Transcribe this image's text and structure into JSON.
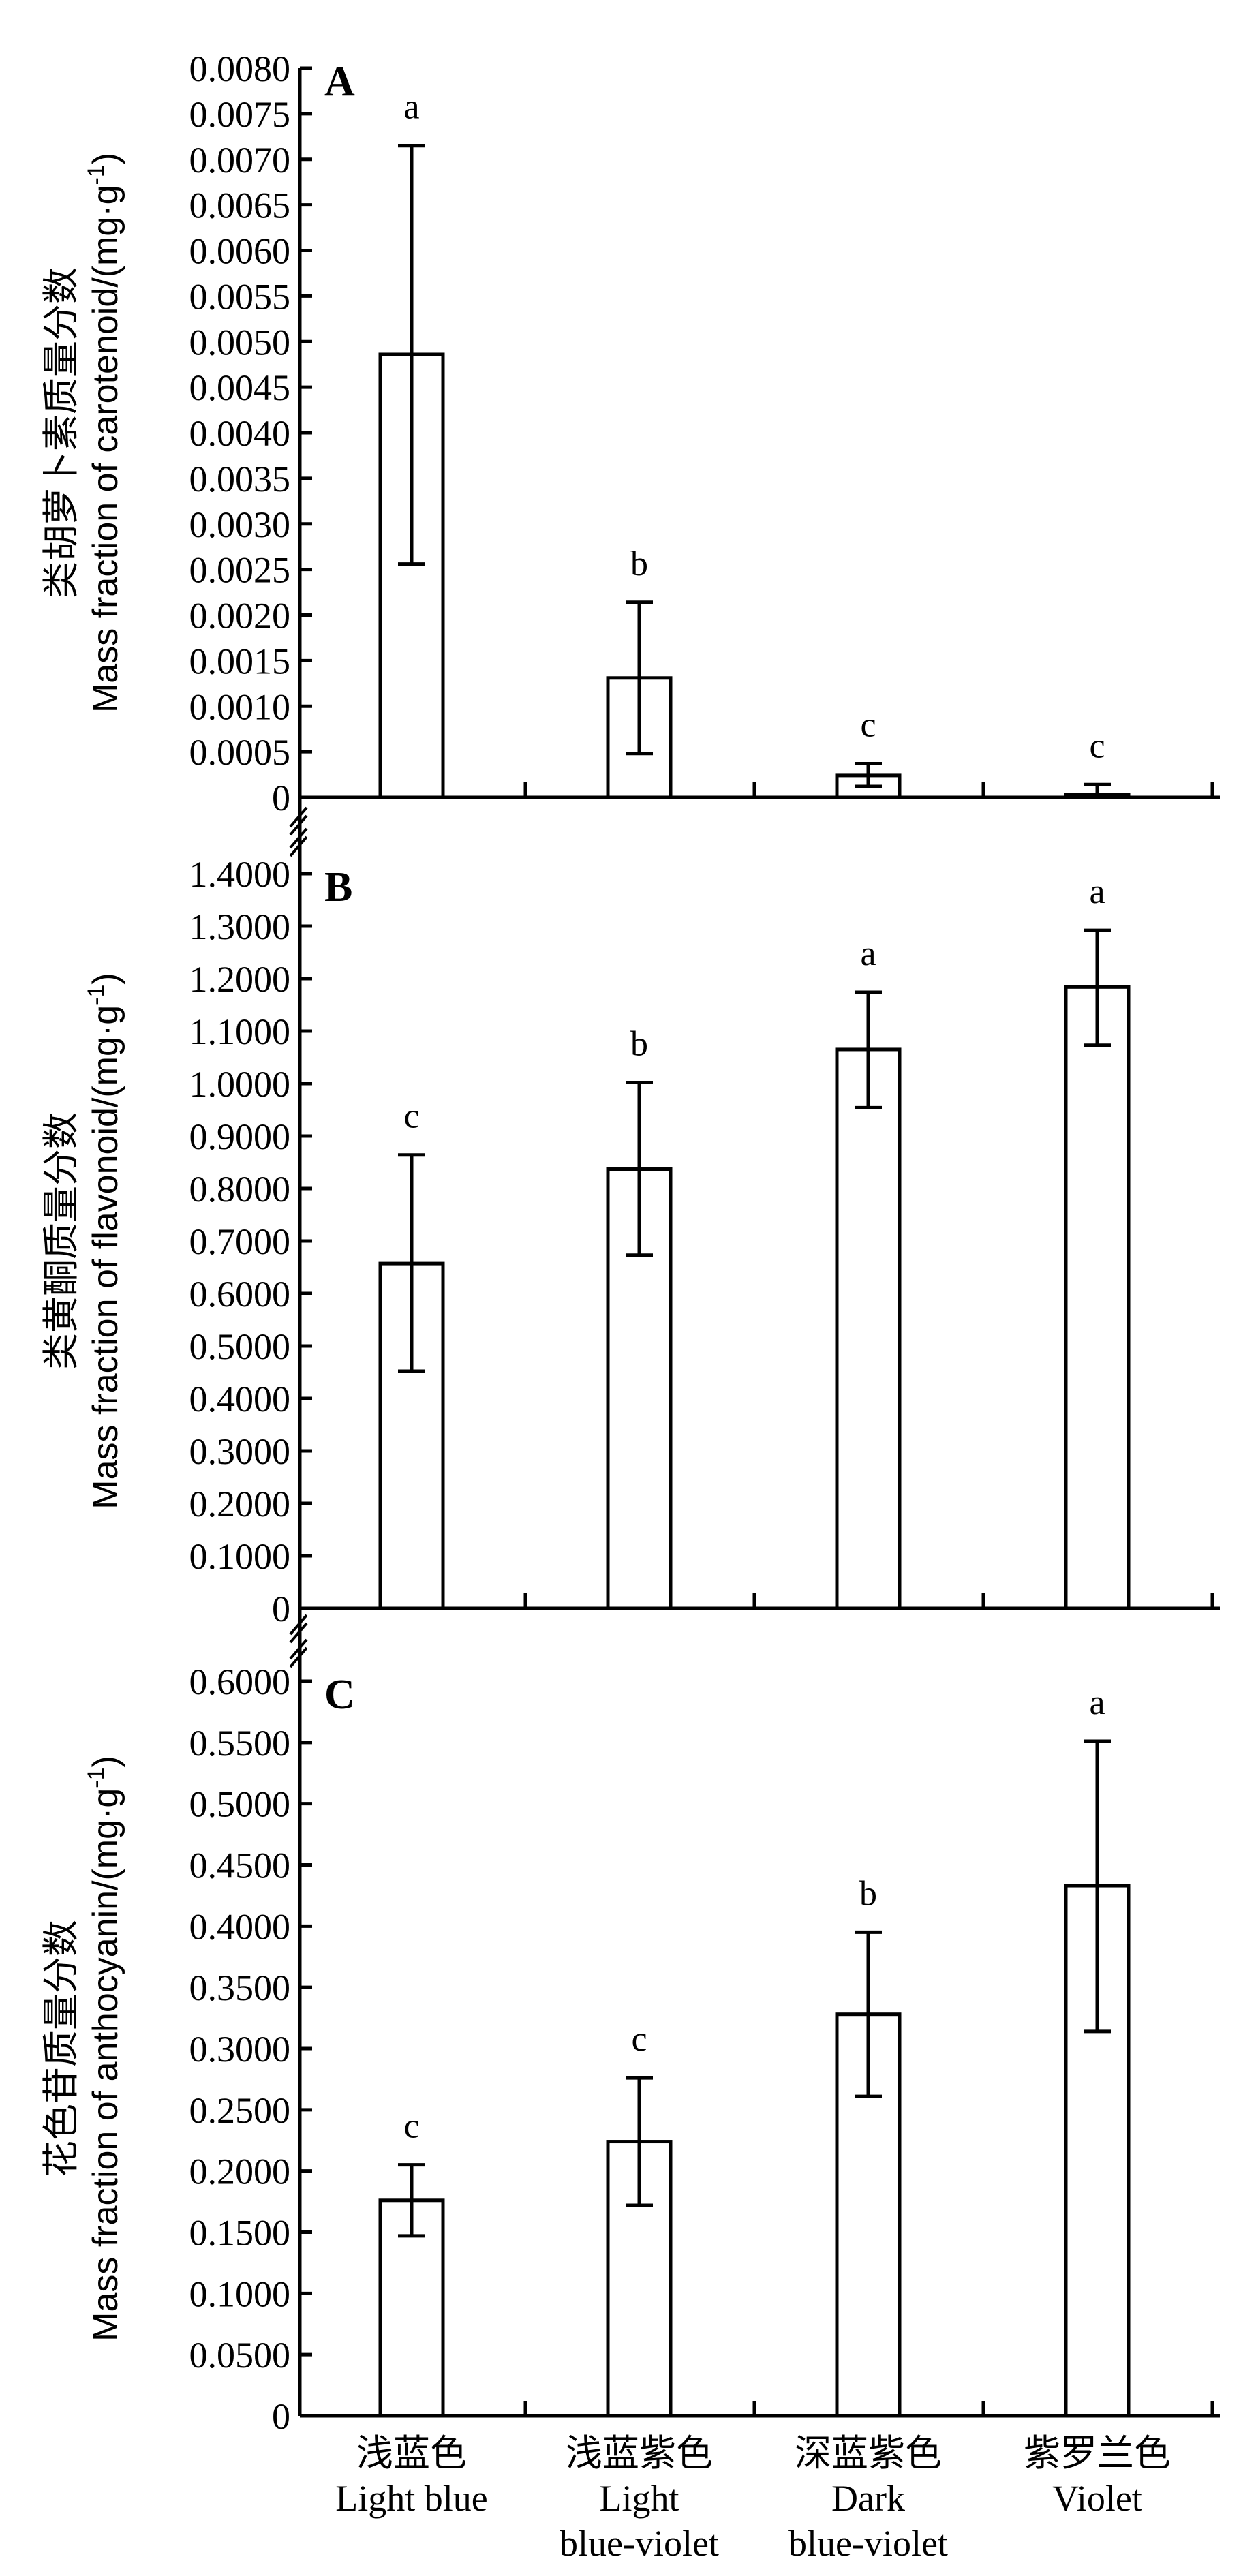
{
  "chart_data": {
    "type": "bar",
    "categories": [
      {
        "zh": "浅蓝色",
        "en": [
          "Light blue"
        ]
      },
      {
        "zh": "浅蓝紫色",
        "en": [
          "Light",
          "blue-violet"
        ]
      },
      {
        "zh": "深蓝紫色",
        "en": [
          "Dark",
          "blue-violet"
        ]
      },
      {
        "zh": "紫罗兰色",
        "en": [
          "Violet"
        ]
      }
    ],
    "panels": [
      {
        "label": "A",
        "ylabel_zh": "类胡萝卜素质量分数",
        "ylabel_en": "Mass fraction of carotenoid/(mg·g",
        "ylabel_sup": "-1",
        "ylabel_close": ")",
        "ylim": [
          0,
          0.008
        ],
        "ytick_step": 0.0005,
        "ytick_labels": [
          "0",
          "0.0005",
          "0.0010",
          "0.0015",
          "0.0020",
          "0.0025",
          "0.0030",
          "0.0035",
          "0.0040",
          "0.0045",
          "0.0050",
          "0.0055",
          "0.0060",
          "0.0065",
          "0.0070",
          "0.0075",
          "0.0080"
        ],
        "values": [
          0.00486,
          0.00131,
          0.00024,
          3e-05
        ],
        "err_high": [
          0.00715,
          0.00214,
          0.00037,
          0.00014
        ],
        "err_low": [
          0.00256,
          0.00048,
          0.00012,
          0.0
        ],
        "letters": [
          "a",
          "b",
          "c",
          "c"
        ]
      },
      {
        "label": "B",
        "ylabel_zh": "类黄酮质量分数",
        "ylabel_en": "Mass fraction of flavonoid/(mg·g",
        "ylabel_sup": "-1",
        "ylabel_close": ")",
        "ylim": [
          0,
          1.4
        ],
        "ytick_step": 0.1,
        "ytick_labels": [
          "0",
          "0.1000",
          "0.2000",
          "0.3000",
          "0.4000",
          "0.5000",
          "0.6000",
          "0.7000",
          "0.8000",
          "0.9000",
          "1.0000",
          "1.1000",
          "1.2000",
          "1.3000",
          "1.4000"
        ],
        "values": [
          0.657,
          0.837,
          1.065,
          1.184
        ],
        "err_high": [
          0.864,
          1.002,
          1.174,
          1.292
        ],
        "err_low": [
          0.452,
          0.673,
          0.954,
          1.073
        ],
        "letters": [
          "c",
          "b",
          "a",
          "a"
        ]
      },
      {
        "label": "C",
        "ylabel_zh": "花色苷质量分数",
        "ylabel_en": "Mass fraction of anthocyanin/(mg·g",
        "ylabel_sup": "-1",
        "ylabel_close": ")",
        "ylim": [
          0,
          0.6
        ],
        "ytick_step": 0.05,
        "ytick_labels": [
          "0",
          "0.0500",
          "0.1000",
          "0.1500",
          "0.2000",
          "0.2500",
          "0.3000",
          "0.3500",
          "0.4000",
          "0.4500",
          "0.5000",
          "0.5500",
          "0.6000"
        ],
        "values": [
          0.176,
          0.224,
          0.328,
          0.433
        ],
        "err_high": [
          0.205,
          0.276,
          0.395,
          0.551
        ],
        "err_low": [
          0.147,
          0.172,
          0.261,
          0.314
        ],
        "letters": [
          "c",
          "c",
          "b",
          "a"
        ]
      }
    ],
    "grid": false,
    "legend": "none",
    "colors": {
      "bar_fill": "#ffffff",
      "stroke": "#000000"
    }
  }
}
